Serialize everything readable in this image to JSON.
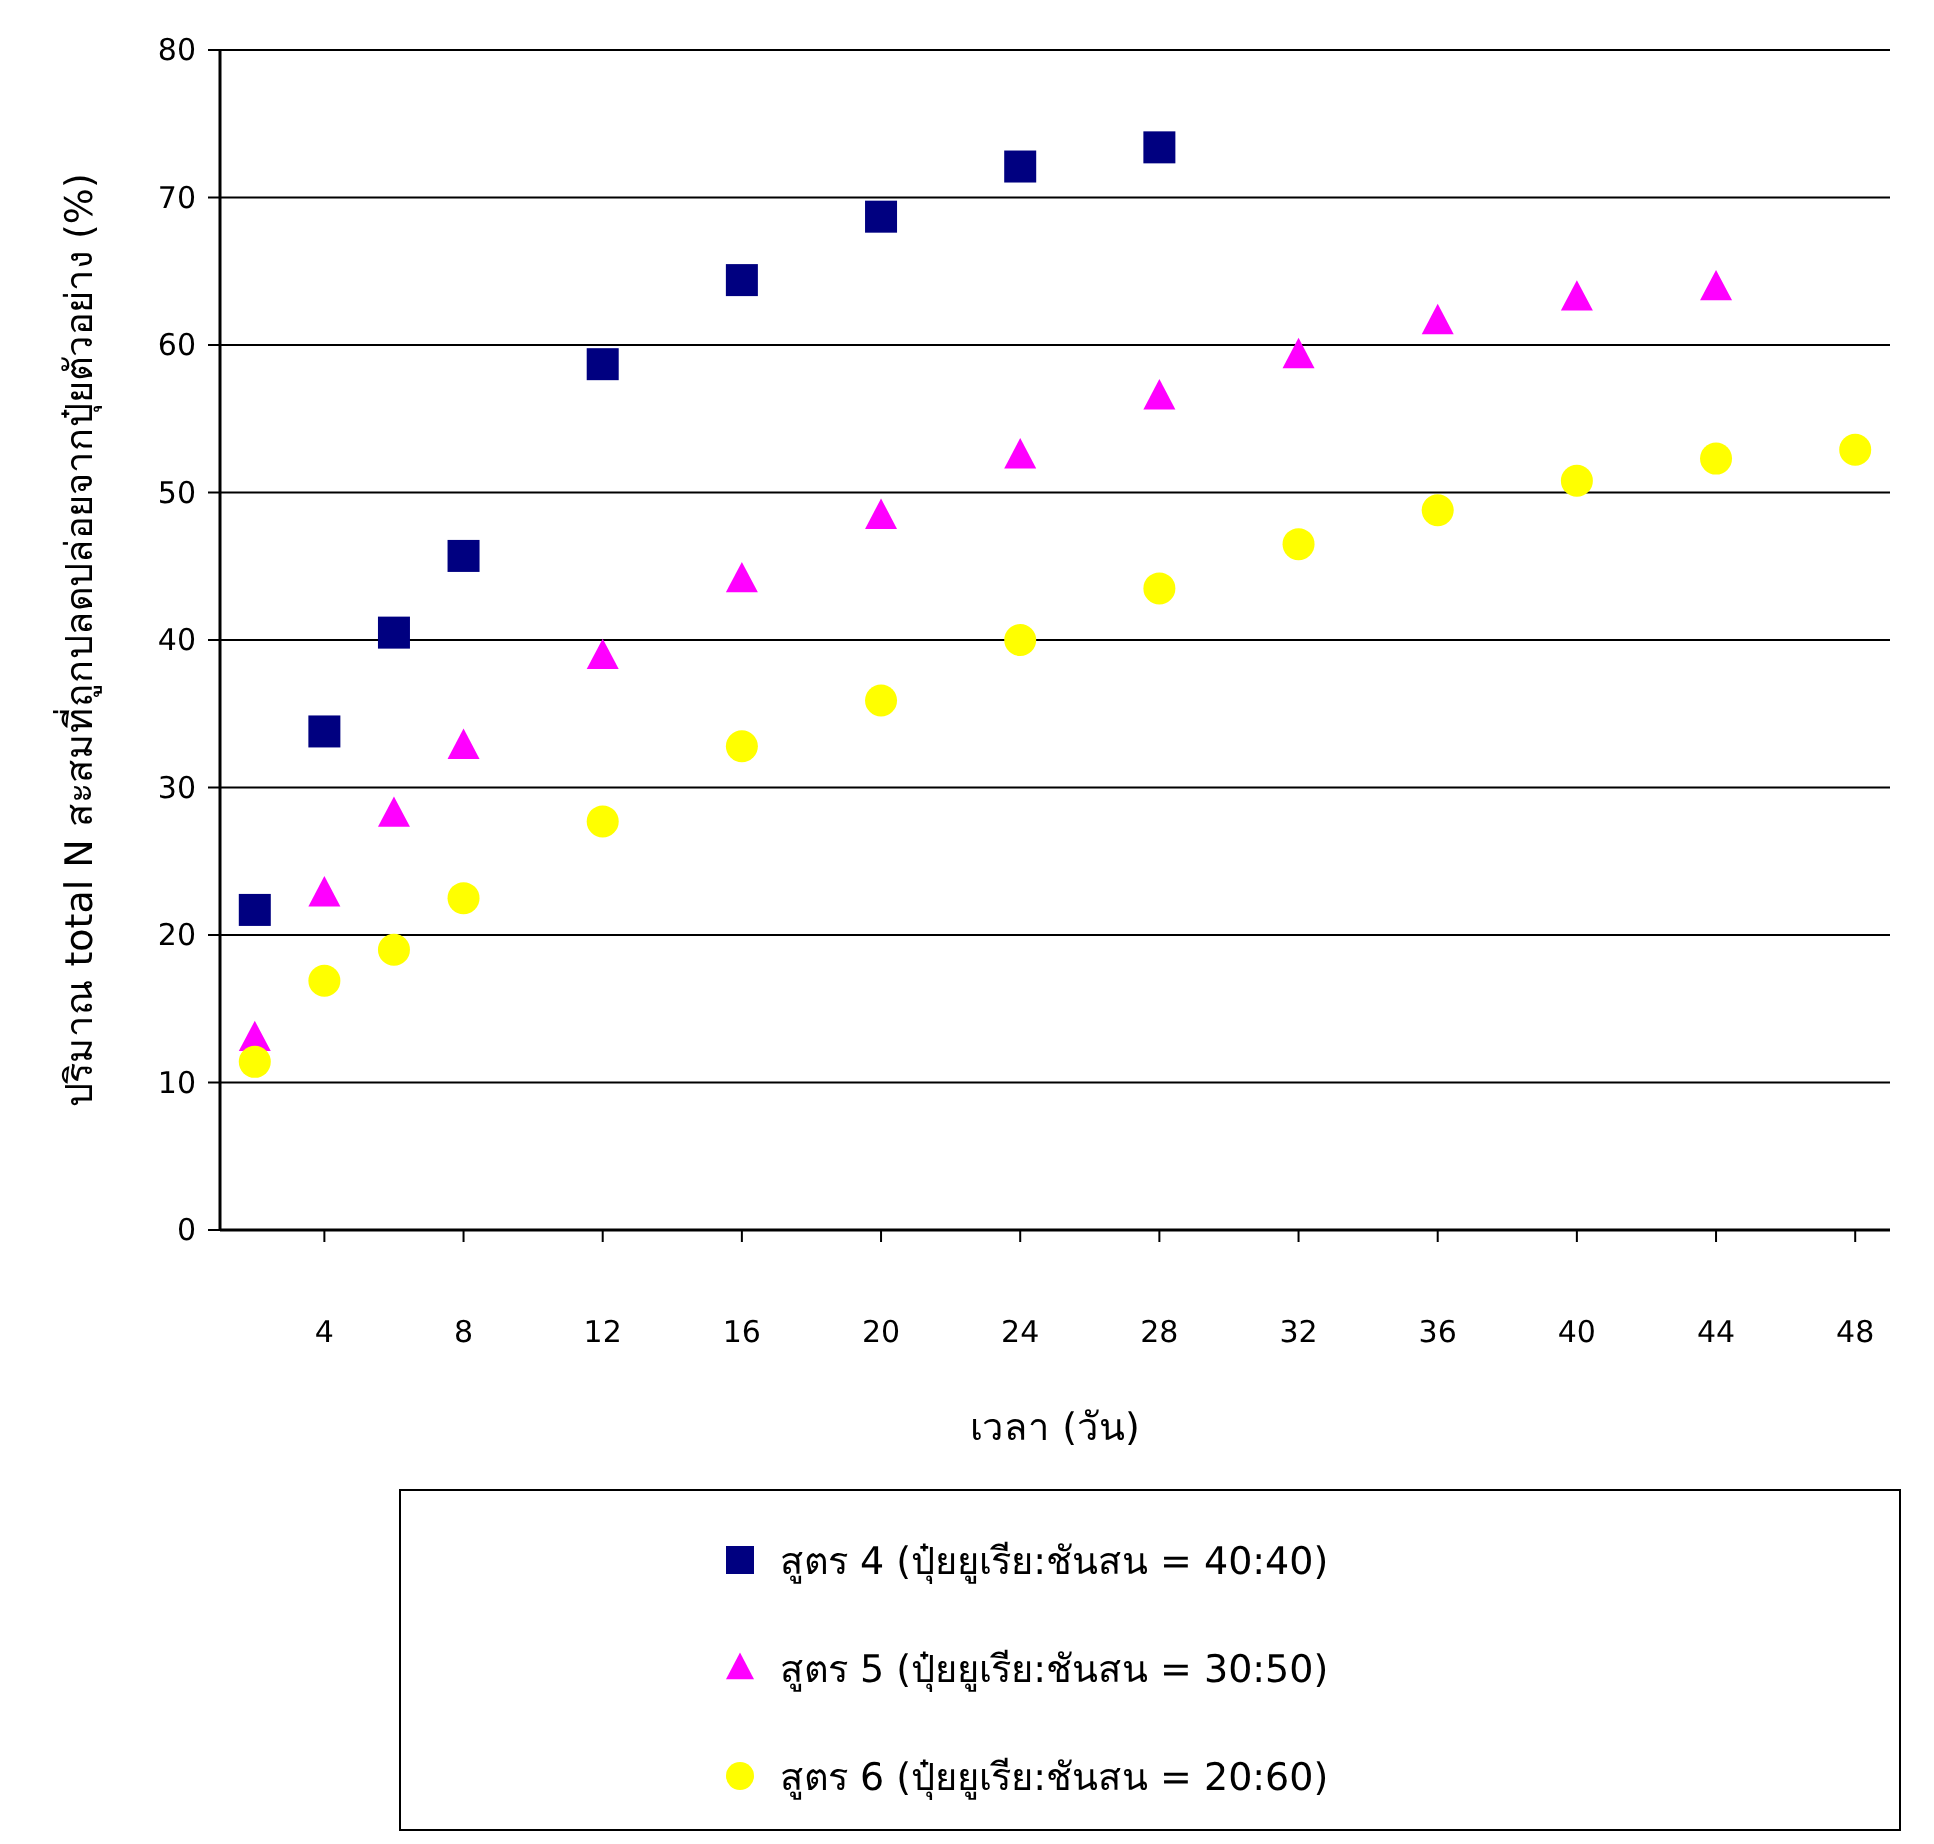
{
  "chart_data": {
    "type": "scatter",
    "xlabel": "เวลา (วัน)",
    "ylabel": "ปริมาณ total N สะสมที่ถูกปลดปล่อยจากปุ๋ยตัวอย่าง (%)",
    "xlim": [
      1,
      49
    ],
    "xticks": [
      4,
      8,
      12,
      16,
      20,
      24,
      28,
      32,
      36,
      40,
      44,
      48
    ],
    "ylim": [
      0,
      80
    ],
    "yticks": [
      0,
      10,
      20,
      30,
      40,
      50,
      60,
      70,
      80
    ],
    "grid": "y",
    "legend": "bottom",
    "series": [
      {
        "name": "สูตร 4 (ปุ๋ยยูเรีย:ชันสน = 40:40)",
        "color": "#000080",
        "marker": "square",
        "x": [
          2,
          4,
          6,
          8,
          12,
          16,
          20,
          24,
          28
        ],
        "values": [
          21.7,
          33.8,
          40.5,
          45.7,
          58.7,
          64.4,
          68.7,
          72.1,
          73.4
        ]
      },
      {
        "name": "สูตร 5 (ปุ๋ยยูเรีย:ชันสน = 30:50)",
        "color": "#ff00ff",
        "marker": "triangle",
        "x": [
          2,
          4,
          6,
          8,
          12,
          16,
          20,
          24,
          28,
          32,
          36,
          40,
          44
        ],
        "values": [
          13.0,
          22.8,
          28.2,
          32.8,
          38.9,
          44.1,
          48.4,
          52.5,
          56.5,
          59.3,
          61.6,
          63.2,
          63.9
        ]
      },
      {
        "name": "สูตร 6 (ปุ๋ยยูเรีย:ชันสน = 20:60)",
        "color": "#ffff00",
        "marker": "circle",
        "x": [
          2,
          4,
          6,
          8,
          12,
          16,
          20,
          24,
          28,
          32,
          36,
          40,
          44,
          48
        ],
        "values": [
          11.4,
          16.9,
          19.0,
          22.5,
          27.7,
          32.8,
          35.9,
          40.0,
          43.5,
          46.5,
          48.8,
          50.8,
          52.3,
          52.9
        ]
      }
    ]
  }
}
